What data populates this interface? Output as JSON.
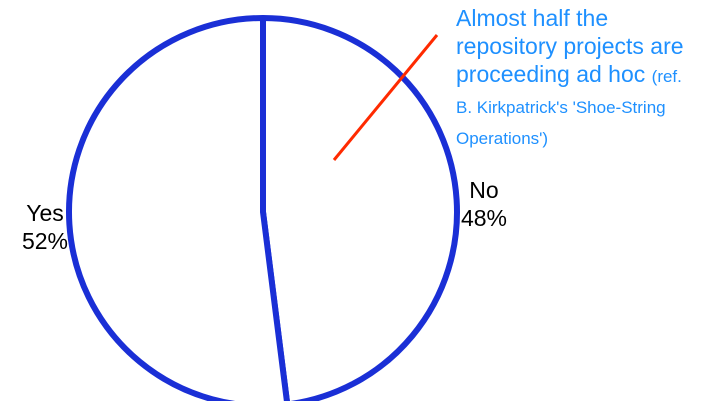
{
  "chart_data": {
    "type": "pie",
    "title": "",
    "slices": [
      {
        "label": "Yes",
        "value": 52,
        "value_label": "52%"
      },
      {
        "label": "No",
        "value": 48,
        "value_label": "48%"
      }
    ],
    "annotation": {
      "main_text": "Almost half the repository projects are proceeding ad hoc",
      "small_text": "(ref. B. Kirkpatrick's 'Shoe-String Operations')"
    },
    "colors": {
      "outline": "#1a2fd6",
      "fill": "#ffffff",
      "annotation_text": "#1e90ff",
      "pointer_line": "#ff2a00"
    }
  }
}
